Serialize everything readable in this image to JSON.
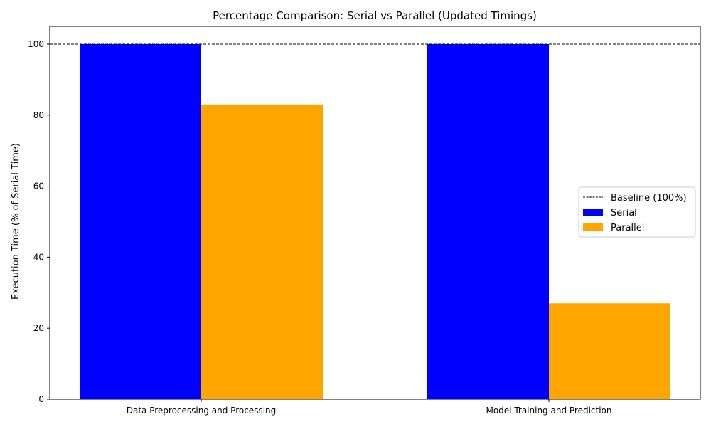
{
  "chart_data": {
    "type": "bar",
    "title": "Percentage Comparison: Serial vs Parallel (Updated Timings)",
    "xlabel": "",
    "ylabel": "Execution Time (% of Serial Time)",
    "categories": [
      "Data Preprocessing and Processing",
      "Model Training and Prediction"
    ],
    "series": [
      {
        "name": "Serial",
        "color": "#0000ff",
        "values": [
          100,
          100
        ]
      },
      {
        "name": "Parallel",
        "color": "#ffa500",
        "values": [
          83,
          27
        ]
      }
    ],
    "baseline": {
      "label": "Baseline (100%)",
      "value": 100,
      "color": "#000000",
      "style": "dashed"
    },
    "ylim": [
      0,
      105
    ],
    "yticks": [
      0,
      20,
      40,
      60,
      80,
      100
    ],
    "grid": false,
    "legend_position": "center-right"
  }
}
